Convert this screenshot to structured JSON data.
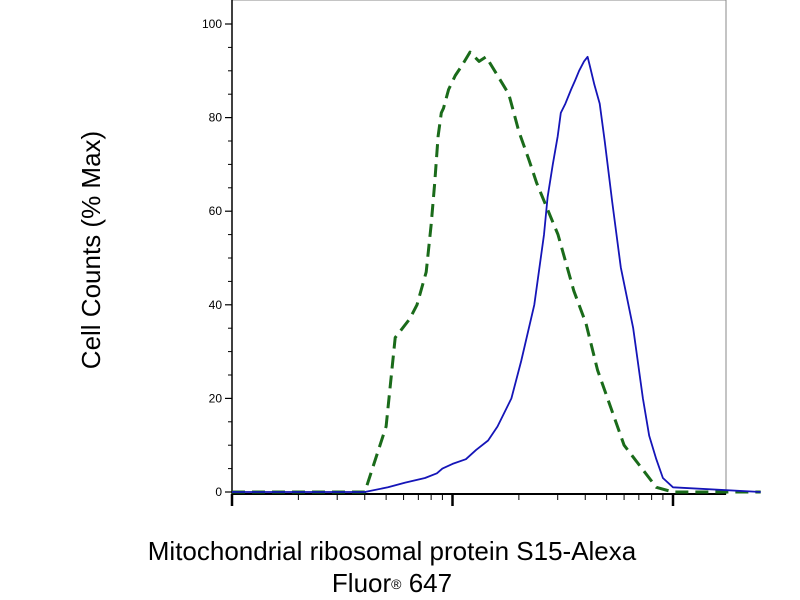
{
  "chart_data": {
    "type": "line",
    "ylabel": "Cell Counts (% Max)",
    "xlabel_line1": "Mitochondrial ribosomal protein S15-Alexa",
    "xlabel_line2_main": "Fluor",
    "xlabel_line2_mark": "®",
    "xlabel_line2_tail": " 647",
    "x_scale": "log",
    "xlim": [
      1,
      250
    ],
    "ylim": [
      0,
      100
    ],
    "y_ticks": [
      {
        "value": 0,
        "label": "0"
      },
      {
        "value": 20,
        "label": "20"
      },
      {
        "value": 40,
        "label": "40"
      },
      {
        "value": 60,
        "label": "60"
      },
      {
        "value": 80,
        "label": "80"
      },
      {
        "value": 100,
        "label": "100"
      }
    ],
    "x_major_ticks": [
      1,
      10,
      100
    ],
    "grid": false,
    "legend": "none",
    "series": [
      {
        "style": "dashed",
        "color": "#1a6b1a",
        "x": [
          1,
          4.0,
          5.0,
          5.5,
          6.4,
          6.9,
          7.6,
          8.0,
          8.3,
          8.6,
          8.9,
          9.1,
          9.6,
          10.3,
          11.0,
          12.0,
          13.2,
          14.2,
          16.0,
          18.0,
          20.0,
          22.2,
          24.1,
          27.2,
          30.1,
          35.5,
          40.3,
          45.5,
          60.0,
          84.0,
          100,
          250
        ],
        "y": [
          0,
          0,
          14,
          33,
          37,
          40,
          47,
          57,
          66,
          76,
          81,
          82,
          86,
          89,
          91,
          94,
          92,
          93,
          89,
          85,
          77,
          71,
          66,
          60,
          55,
          43,
          36,
          26,
          10,
          1,
          0,
          0
        ]
      },
      {
        "style": "solid",
        "color": "#1515b8",
        "x": [
          1,
          4.0,
          5.1,
          6.1,
          7.5,
          8.5,
          9.0,
          10.0,
          11.5,
          12.8,
          14.5,
          16.0,
          18.5,
          20.5,
          23.5,
          26.0,
          27.0,
          28.5,
          30.0,
          31.0,
          32.5,
          34.5,
          36.0,
          37.5,
          39.5,
          41.0,
          42.0,
          44.0,
          46.5,
          49.0,
          53.0,
          58.0,
          66.0,
          73.0,
          78.0,
          84.0,
          90.0,
          100,
          250
        ],
        "y": [
          0,
          0,
          1,
          2,
          3,
          4,
          5,
          6,
          7,
          9,
          11,
          14,
          20,
          28,
          40,
          55,
          63,
          70,
          76,
          81,
          83,
          86,
          88,
          90,
          92,
          93,
          91,
          87,
          83,
          75,
          62,
          48,
          35,
          20,
          12,
          7,
          3,
          1,
          0
        ]
      }
    ]
  }
}
